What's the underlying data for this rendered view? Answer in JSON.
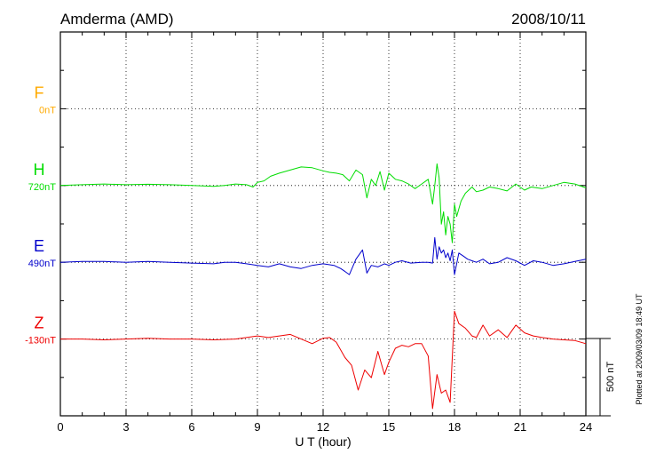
{
  "header": {
    "station": "Amderma (AMD)",
    "date": "2008/10/11"
  },
  "footer": {
    "plotted_note": "Plotted at 2009/03/09 18:49 UT"
  },
  "chart_data": {
    "type": "line",
    "xlabel": "U T (hour)",
    "xlim": [
      0,
      24
    ],
    "xticks": [
      "0",
      "3",
      "6",
      "9",
      "12",
      "15",
      "18",
      "21",
      "24"
    ],
    "grid": true,
    "scale_bar": {
      "label": "500 nT",
      "value_nT": 500
    },
    "colors": {
      "F": "#ffaa00",
      "H": "#00dd00",
      "E": "#0000cc",
      "Z": "#ee0000"
    },
    "series": [
      {
        "name": "F",
        "baseline": "0nT",
        "color": "#ffaa00",
        "x": [],
        "y": []
      },
      {
        "name": "H",
        "baseline": "720nT",
        "color": "#00dd00",
        "x": [
          0,
          1,
          2,
          3,
          4,
          5,
          6,
          7,
          7.5,
          8,
          8.5,
          8.8,
          9,
          9.3,
          9.6,
          10,
          10.5,
          11,
          11.5,
          12,
          12.3,
          12.6,
          12.9,
          13.2,
          13.5,
          13.8,
          14,
          14.2,
          14.4,
          14.6,
          14.8,
          15,
          15.3,
          15.6,
          15.9,
          16.2,
          16.5,
          16.8,
          17,
          17.1,
          17.2,
          17.3,
          17.4,
          17.5,
          17.6,
          17.7,
          17.8,
          17.9,
          18,
          18.1,
          18.3,
          18.5,
          18.8,
          19,
          19.3,
          19.6,
          20,
          20.4,
          20.8,
          21.2,
          21.5,
          22,
          22.5,
          23,
          23.5,
          24
        ],
        "y": [
          0,
          5,
          10,
          5,
          8,
          5,
          0,
          -5,
          0,
          10,
          5,
          -10,
          20,
          30,
          60,
          80,
          100,
          120,
          115,
          95,
          85,
          80,
          70,
          30,
          100,
          70,
          -80,
          40,
          0,
          90,
          -30,
          80,
          40,
          30,
          10,
          -20,
          10,
          40,
          -120,
          0,
          140,
          50,
          -250,
          -170,
          -320,
          -200,
          -250,
          -370,
          -120,
          -200,
          -100,
          -50,
          -10,
          -40,
          -30,
          -10,
          -20,
          -35,
          10,
          -30,
          -10,
          -20,
          0,
          20,
          10,
          -15
        ]
      },
      {
        "name": "E",
        "baseline": "490nT",
        "color": "#0000cc",
        "x": [
          0,
          1,
          2,
          3,
          4,
          5,
          6,
          7,
          7.5,
          8,
          8.5,
          9,
          9.5,
          10,
          10.5,
          11,
          11.5,
          12,
          12.5,
          12.8,
          13,
          13.2,
          13.5,
          13.8,
          14,
          14.2,
          14.5,
          14.8,
          15,
          15.3,
          15.6,
          16,
          16.5,
          16.8,
          17,
          17.1,
          17.2,
          17.3,
          17.4,
          17.5,
          17.6,
          17.7,
          17.8,
          17.9,
          18,
          18.2,
          18.4,
          18.6,
          18.8,
          19,
          19.3,
          19.6,
          20,
          20.4,
          20.8,
          21.2,
          21.6,
          22,
          22.5,
          23,
          23.5,
          24
        ],
        "y": [
          0,
          5,
          5,
          0,
          5,
          0,
          -5,
          -10,
          0,
          0,
          -10,
          -20,
          -30,
          -10,
          -30,
          -40,
          -20,
          -10,
          -20,
          -40,
          -60,
          -80,
          20,
          80,
          -70,
          -20,
          -30,
          -10,
          -20,
          0,
          10,
          -5,
          0,
          0,
          -5,
          160,
          20,
          100,
          60,
          80,
          30,
          60,
          10,
          80,
          -80,
          60,
          40,
          20,
          10,
          0,
          20,
          -10,
          0,
          30,
          10,
          -20,
          10,
          0,
          -20,
          -10,
          5,
          20
        ]
      },
      {
        "name": "Z",
        "baseline": "-130nT",
        "color": "#ee0000",
        "x": [
          0,
          1,
          2,
          3,
          4,
          5,
          6,
          7,
          8,
          8.5,
          9,
          9.5,
          10,
          10.5,
          11,
          11.5,
          12,
          12.3,
          12.6,
          13,
          13.3,
          13.6,
          13.9,
          14.2,
          14.5,
          14.8,
          15,
          15.3,
          15.6,
          15.9,
          16.2,
          16.5,
          16.8,
          17,
          17.2,
          17.4,
          17.6,
          17.8,
          18,
          18.2,
          18.5,
          18.8,
          19,
          19.3,
          19.6,
          20,
          20.4,
          20.8,
          21.2,
          21.6,
          22,
          22.5,
          23,
          23.5,
          24
        ],
        "y": [
          0,
          0,
          -5,
          0,
          5,
          0,
          0,
          -5,
          0,
          10,
          20,
          10,
          20,
          30,
          0,
          -30,
          5,
          10,
          -20,
          -120,
          -170,
          -330,
          -200,
          -250,
          -80,
          -230,
          -150,
          -60,
          -40,
          -50,
          -30,
          -30,
          -110,
          -450,
          -230,
          -350,
          -330,
          -410,
          180,
          100,
          70,
          20,
          10,
          90,
          20,
          60,
          10,
          90,
          40,
          20,
          10,
          0,
          -5,
          -10,
          -30
        ]
      }
    ]
  }
}
